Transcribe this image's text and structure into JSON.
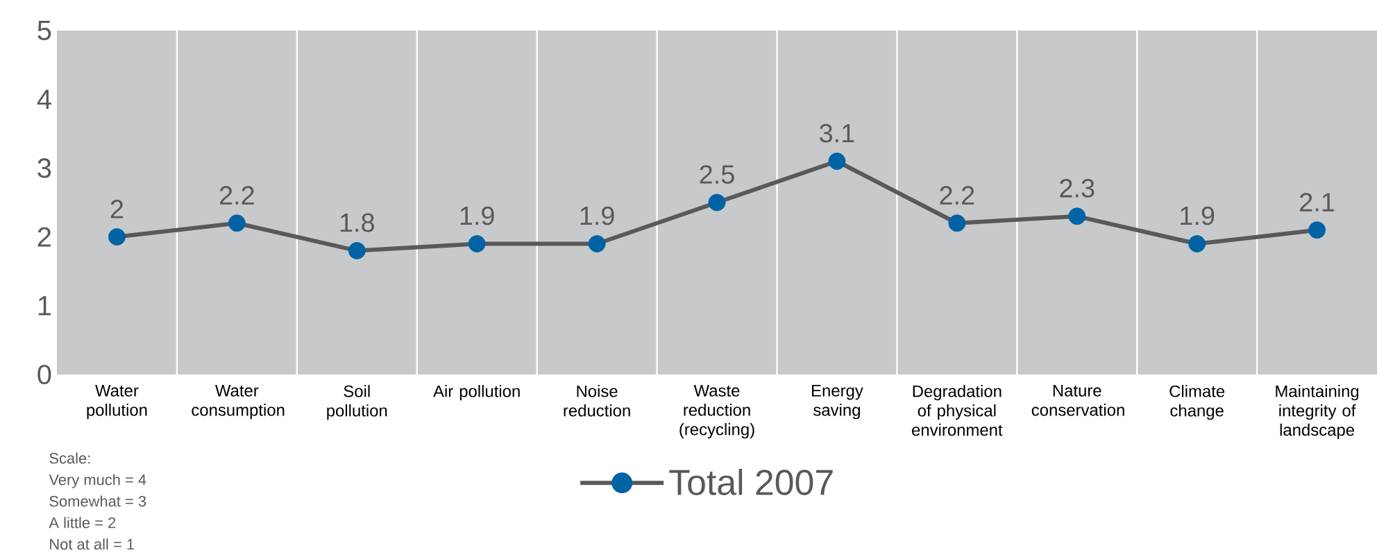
{
  "chart_data": {
    "type": "line",
    "categories": [
      "Water pollution",
      "Water consumption",
      "Soil pollution",
      "Air pollution",
      "Noise reduction",
      "Waste reduction (recycling)",
      "Energy saving",
      "Degradation of physical environment",
      "Nature conservation",
      "Climate change",
      "Maintaining integrity of landscape"
    ],
    "series": [
      {
        "name": "Total 2007",
        "color": "#58595b",
        "colors": [
          "#0063a6",
          "#0063a6",
          "#0063a6",
          "#0063a6",
          "#0063a6",
          "#0063a6",
          "#0063a6",
          "#0063a6",
          "#0063a6",
          "#0063a6",
          "#0063a6"
        ],
        "values": [
          2,
          2.2,
          1.8,
          1.9,
          1.9,
          2.5,
          3.1,
          2.2,
          2.3,
          1.9,
          2.1
        ]
      }
    ],
    "ylim": [
      0,
      5
    ],
    "yticks": [
      0,
      1,
      2,
      3,
      4,
      5
    ],
    "grid": "x",
    "legend": "bottom",
    "marker": "circle",
    "line_style": "solid",
    "data_labels": true,
    "annotations": [
      "Scale:",
      "Very much = 4",
      "Somewhat = 3",
      "A little = 2",
      "Not at all = 1"
    ]
  }
}
